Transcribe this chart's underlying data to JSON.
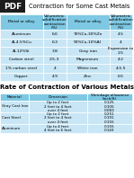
{
  "title1": "Contraction for Some Cast Metals",
  "table1_col_headers": [
    "Metal or alloy",
    "Volumetric\nsolidification\ncontraction\n(%)",
    "Metal or alloy",
    "Volumetric\nsolidification\ncontraction\n(%)"
  ],
  "table1_rows": [
    [
      "Aluminum",
      "6.6",
      "70%Cu-30%Zn",
      "4.5"
    ],
    [
      "Al-4.5%Cu",
      "6.3",
      "90%Cu-10%Al",
      "4"
    ],
    [
      "Al-12%Si",
      "3.8",
      "Gray iron",
      "Expansion to\n2.5"
    ],
    [
      "Carbon steel",
      "2.5-3",
      "Magnesium",
      "4.2"
    ],
    [
      "1% carbon steel",
      "4",
      "White iron",
      "4-5.5"
    ],
    [
      "Copper",
      "4.9",
      "Zinc",
      "6.5"
    ]
  ],
  "title2": "Rate of Contraction of Various Metals",
  "table2_col_headers": [
    "Material",
    "Dimension",
    "Shrinkage allowance\n(inch/ft)"
  ],
  "table2_rows": [
    [
      "Gray Cast Iron",
      "Up to 2 feet\n2 feet to 4 feet\nover 4 feet",
      "0.125\n0.105\n0.083"
    ],
    [
      "Cast Steel",
      "Up to 2 feet\n2 feet to 4 feet\nover 4 feet",
      "0.251\n0.191\n0.155"
    ],
    [
      "Aluminum",
      "Up to 4 feet\n4 feet to 6 feet",
      "0.155\n0.143"
    ]
  ],
  "header_color": "#7ec8e3",
  "row_color": "#c8e6f5",
  "white": "#ffffff",
  "black": "#000000",
  "pdf_bg": "#1c1c1c"
}
